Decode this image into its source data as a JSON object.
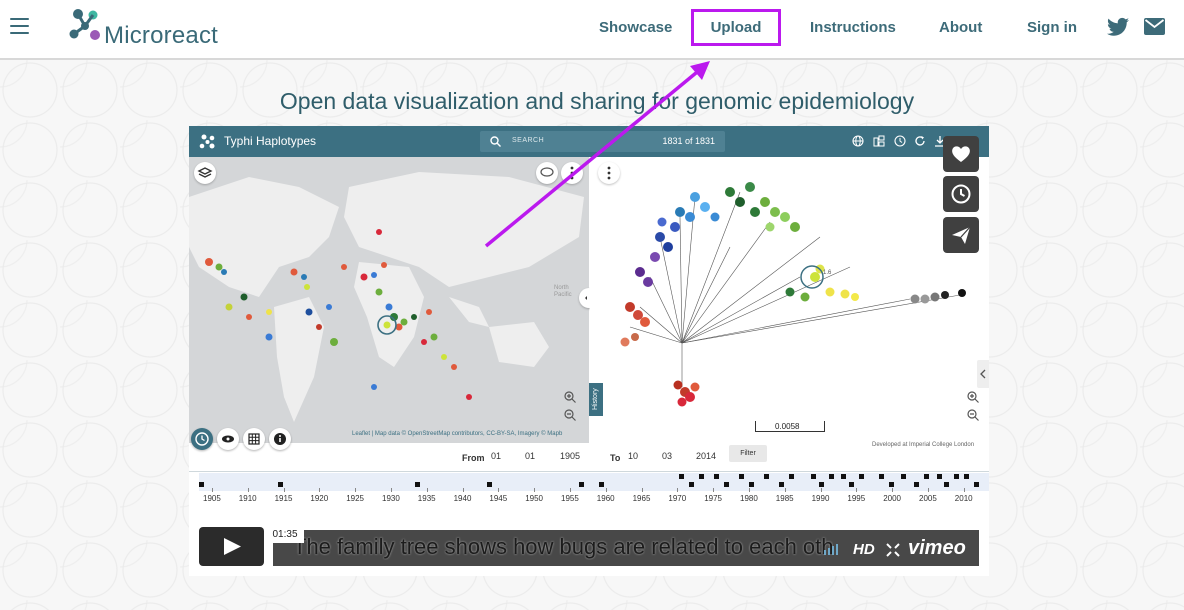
{
  "header": {
    "brand": "Microreact",
    "nav": [
      "Showcase",
      "Upload",
      "Instructions",
      "About",
      "Sign in"
    ],
    "highlight_color": "#bb19ee"
  },
  "tagline": "Open data visualization and sharing for genomic epidemiology",
  "video": {
    "app_title": "Typhi Haplotypes",
    "search_placeholder": "SEARCH",
    "search_count": "1831 of 1831",
    "map_attribution": "Leaflet | Map data © OpenStreetMap contributors, CC-BY-SA, Imagery © Mapb",
    "developed_by": "Developed at Imperial College London",
    "scale_value": "0.0058",
    "history_tab": "History",
    "filter": {
      "from_label": "From",
      "from_day": "01",
      "from_month": "01",
      "from_year": "1905",
      "to_label": "To",
      "to_day": "10",
      "to_month": "03",
      "to_year": "2014",
      "button": "Filter"
    },
    "timeline_years": [
      "1905",
      "1910",
      "1915",
      "1920",
      "1925",
      "1930",
      "1935",
      "1940",
      "1945",
      "1950",
      "1955",
      "1960",
      "1965",
      "1970",
      "1975",
      "1980",
      "1985",
      "1990",
      "1995",
      "2000",
      "2005",
      "2010"
    ],
    "player": {
      "time": "01:35",
      "caption": "The family tree shows how bugs are related to each oth",
      "hd": "HD",
      "brand": "vimeo"
    }
  }
}
